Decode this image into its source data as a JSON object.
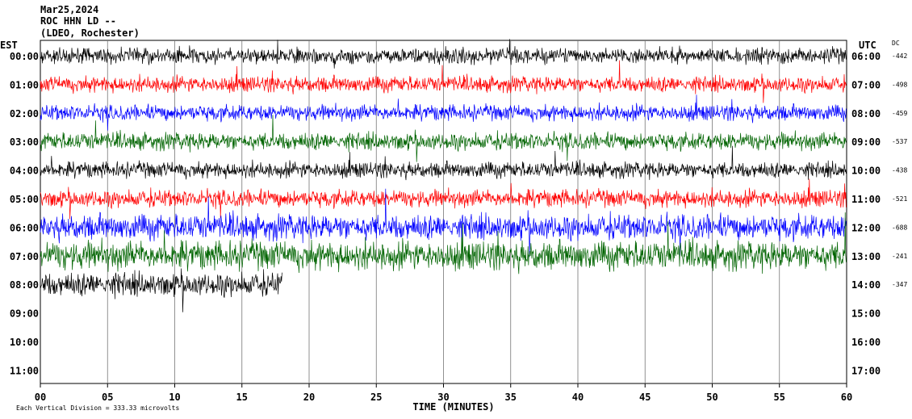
{
  "header": {
    "date": "Mar25,2024",
    "station": "ROC HHN LD --",
    "network": "(LDEO, Rochester)"
  },
  "chart_data": {
    "type": "line",
    "title": "",
    "xlabel": "TIME (MINUTES)",
    "xlim": [
      0,
      60
    ],
    "x_ticks": [
      "00",
      "05",
      "10",
      "15",
      "20",
      "25",
      "30",
      "35",
      "40",
      "45",
      "50",
      "55",
      "60"
    ],
    "left_axis_label": "EST",
    "right_axis_label": "UTC",
    "dc_label": "DC",
    "scale_note": "Each Vertical Division =  333.33 microvolts",
    "gridlines": "vertical, every 5 minutes",
    "rows": [
      {
        "est": "00:00",
        "utc": "06:00",
        "dc": "-442",
        "color": "#000000",
        "amp": 1.0,
        "span_min": 60
      },
      {
        "est": "01:00",
        "utc": "07:00",
        "dc": "-498",
        "color": "#ff0000",
        "amp": 1.0,
        "span_min": 60
      },
      {
        "est": "02:00",
        "utc": "08:00",
        "dc": "-459",
        "color": "#0000ff",
        "amp": 1.0,
        "span_min": 60
      },
      {
        "est": "03:00",
        "utc": "09:00",
        "dc": "-537",
        "color": "#006400",
        "amp": 1.1,
        "span_min": 60
      },
      {
        "est": "04:00",
        "utc": "10:00",
        "dc": "-438",
        "color": "#000000",
        "amp": 1.0,
        "span_min": 60
      },
      {
        "est": "05:00",
        "utc": "11:00",
        "dc": "-521",
        "color": "#ff0000",
        "amp": 1.1,
        "span_min": 60
      },
      {
        "est": "06:00",
        "utc": "12:00",
        "dc": "-688",
        "color": "#0000ff",
        "amp": 1.6,
        "span_min": 60
      },
      {
        "est": "07:00",
        "utc": "13:00",
        "dc": "-241",
        "color": "#006400",
        "amp": 1.8,
        "span_min": 60
      },
      {
        "est": "08:00",
        "utc": "14:00",
        "dc": "-347",
        "color": "#000000",
        "amp": 1.5,
        "span_min": 18
      },
      {
        "est": "09:00",
        "utc": "15:00",
        "dc": "",
        "color": "#000000",
        "amp": 0,
        "span_min": 0
      },
      {
        "est": "10:00",
        "utc": "16:00",
        "dc": "",
        "color": "#000000",
        "amp": 0,
        "span_min": 0
      },
      {
        "est": "11:00",
        "utc": "17:00",
        "dc": "",
        "color": "#000000",
        "amp": 0,
        "span_min": 0
      }
    ]
  }
}
